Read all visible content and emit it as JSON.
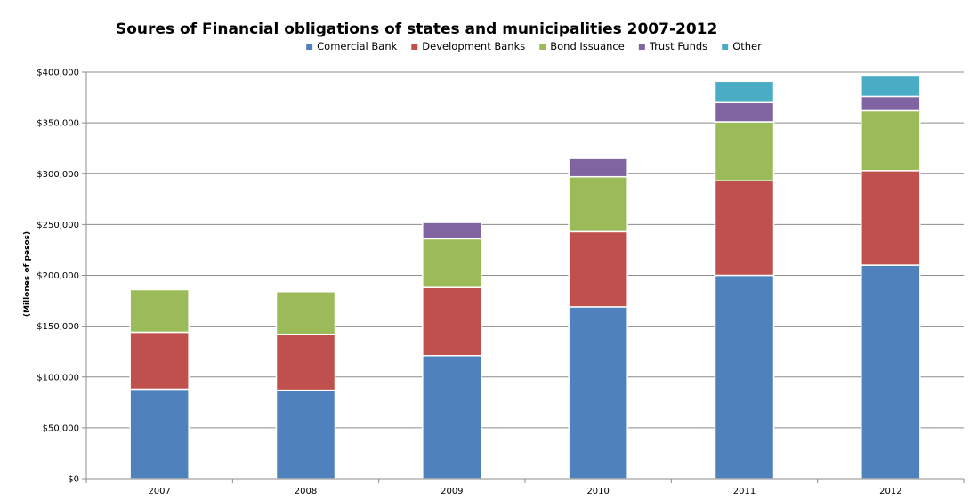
{
  "chart_data": {
    "type": "bar",
    "stacked": true,
    "title": "Soures of Financial obligations of states and municipalities 2007-2012",
    "xlabel": "",
    "ylabel": "(Millones of pesos)",
    "categories": [
      "2007",
      "2008",
      "2009",
      "2010",
      "2011",
      "2012"
    ],
    "ylim": [
      0,
      400000
    ],
    "yticks": [
      0,
      50000,
      100000,
      150000,
      200000,
      250000,
      300000,
      350000,
      400000
    ],
    "ytick_labels": [
      "$0",
      "$50,000",
      "$100,000",
      "$150,000",
      "$200,000",
      "$250,000",
      "$300,000",
      "$350,000",
      "$400,000"
    ],
    "grid": true,
    "legend_position": "top",
    "series": [
      {
        "name": "Comercial Bank",
        "color": "#4f81bd",
        "values": [
          88000,
          87000,
          121000,
          169000,
          200000,
          210000
        ]
      },
      {
        "name": "Development Banks",
        "color": "#c0504d",
        "values": [
          56000,
          55000,
          67000,
          74000,
          93000,
          93000
        ]
      },
      {
        "name": "Bond Issuance",
        "color": "#9bbb59",
        "values": [
          42000,
          42000,
          48000,
          54000,
          58000,
          59000
        ]
      },
      {
        "name": "Trust Funds",
        "color": "#8064a2",
        "values": [
          0,
          0,
          16000,
          18000,
          19000,
          14000
        ]
      },
      {
        "name": "Other",
        "color": "#4bacc6",
        "values": [
          0,
          0,
          0,
          0,
          21000,
          21000
        ]
      }
    ]
  }
}
